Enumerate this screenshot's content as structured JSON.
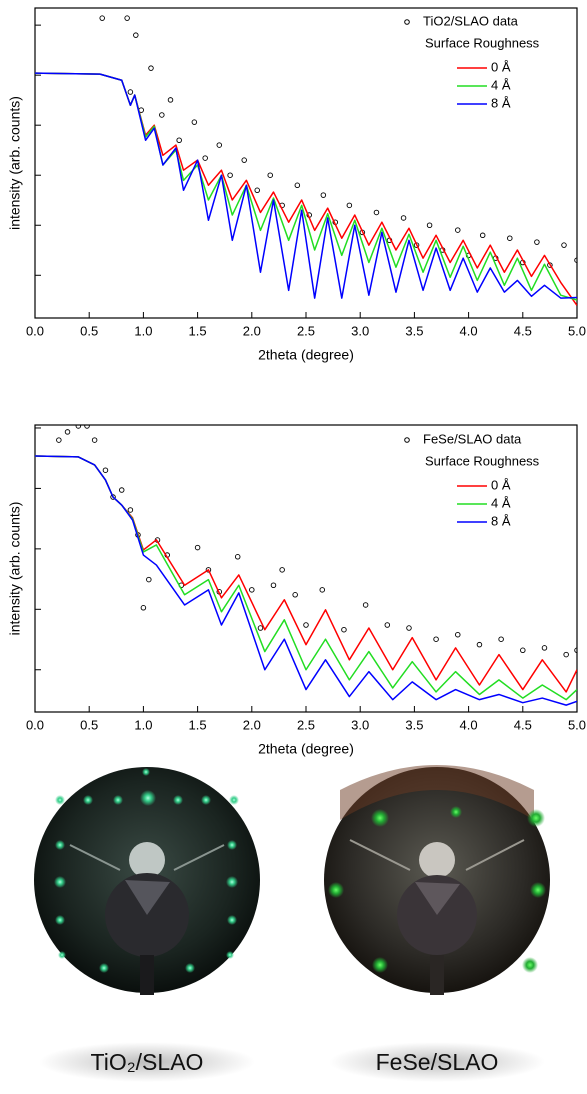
{
  "chart_data": [
    {
      "type": "line",
      "x_label": "2theta (degree)",
      "y_label": "intensity (arb. counts)",
      "log_scale": true,
      "legend_title": "Surface Roughness",
      "legend_position": "upper right",
      "xlim": [
        0,
        5
      ],
      "xticks": [
        {
          "value": 0,
          "label": "0.0"
        },
        {
          "value": 0.5,
          "label": "0.5"
        },
        {
          "value": 1,
          "label": "1.0"
        },
        {
          "value": 1.5,
          "label": "1.5"
        },
        {
          "value": 2,
          "label": "2.0"
        },
        {
          "value": 2.5,
          "label": "2.5"
        },
        {
          "value": 3,
          "label": "3.0"
        },
        {
          "value": 3.5,
          "label": "3.5"
        },
        {
          "value": 4,
          "label": "4.0"
        },
        {
          "value": 4.5,
          "label": "4.5"
        },
        {
          "value": 5,
          "label": "5.0"
        }
      ],
      "ylim": [
        1.4e-06,
        2.2
      ],
      "yticks": [
        1,
        0.1,
        0.01,
        0.001,
        0.0001,
        1e-05
      ],
      "series": [
        {
          "name": "TiO2/SLAO data",
          "mode": "markers",
          "color": "#000000",
          "x": [
            0.62,
            0.85,
            0.88,
            0.93,
            0.98,
            1.07,
            1.17,
            1.25,
            1.33,
            1.47,
            1.57,
            1.7,
            1.8,
            1.93,
            2.05,
            2.17,
            2.28,
            2.42,
            2.53,
            2.66,
            2.77,
            2.9,
            3.02,
            3.15,
            3.27,
            3.4,
            3.52,
            3.64,
            3.76,
            3.9,
            4.0,
            4.13,
            4.25,
            4.38,
            4.5,
            4.63,
            4.75,
            4.88,
            5.0
          ],
          "values": [
            1.38,
            1.38,
            0.046,
            0.63,
            0.02,
            0.138,
            0.016,
            0.032,
            0.005,
            0.0115,
            0.0022,
            0.004,
            0.001,
            0.002,
            0.0005,
            0.001,
            0.00025,
            0.00063,
            0.00016,
            0.0004,
            0.000115,
            0.00025,
            7.2e-05,
            0.00018,
            5e-05,
            0.00014,
            4e-05,
            0.0001,
            3.2e-05,
            8e-05,
            2.5e-05,
            6.3e-05,
            2.2e-05,
            5.5e-05,
            1.8e-05,
            4.6e-05,
            1.6e-05,
            4e-05,
            2e-05
          ]
        },
        {
          "name": "0 Å",
          "mode": "line",
          "color": "#ff0000",
          "x": [
            0,
            0.6,
            0.8,
            0.88,
            0.92,
            1.02,
            1.1,
            1.18,
            1.3,
            1.37,
            1.5,
            1.6,
            1.72,
            1.82,
            1.95,
            2.08,
            2.2,
            2.34,
            2.46,
            2.58,
            2.7,
            2.83,
            2.95,
            3.08,
            3.2,
            3.33,
            3.45,
            3.58,
            3.7,
            3.83,
            3.95,
            4.08,
            4.2,
            4.33,
            4.45,
            4.58,
            4.7,
            4.85,
            5.0
          ],
          "values": [
            0.11,
            0.105,
            0.079,
            0.025,
            0.04,
            0.0063,
            0.01,
            0.0025,
            0.004,
            0.00126,
            0.002,
            0.00063,
            0.00126,
            0.00032,
            0.00079,
            0.00018,
            0.00046,
            0.000115,
            0.00032,
            7.9e-05,
            0.00022,
            5.5e-05,
            0.00016,
            4e-05,
            0.000115,
            3.2e-05,
            8.7e-05,
            2.2e-05,
            6.3e-05,
            1.8e-05,
            5e-05,
            1.4e-05,
            4e-05,
            1.15e-05,
            3.2e-05,
            9.5e-06,
            2.5e-05,
            7.2e-06,
            2.5e-06
          ]
        },
        {
          "name": "4 Å",
          "mode": "line",
          "color": "#22dd22",
          "x": [
            0,
            0.6,
            0.8,
            0.88,
            0.92,
            1.02,
            1.1,
            1.18,
            1.3,
            1.37,
            1.5,
            1.6,
            1.72,
            1.82,
            1.95,
            2.08,
            2.2,
            2.34,
            2.46,
            2.58,
            2.7,
            2.83,
            2.95,
            3.08,
            3.2,
            3.33,
            3.45,
            3.58,
            3.7,
            3.83,
            3.95,
            4.08,
            4.2,
            4.33,
            4.45,
            4.58,
            4.7,
            4.85,
            5.0
          ],
          "values": [
            0.11,
            0.105,
            0.079,
            0.025,
            0.04,
            0.0058,
            0.0095,
            0.0016,
            0.0032,
            0.00079,
            0.0016,
            0.00032,
            0.001,
            0.00016,
            0.00063,
            7.9e-05,
            0.00035,
            5e-05,
            0.00025,
            3.2e-05,
            0.00017,
            2.5e-05,
            0.000126,
            1.8e-05,
            8.7e-05,
            1.45e-05,
            6.6e-05,
            1.15e-05,
            5e-05,
            9.1e-06,
            3.8e-05,
            7.9e-06,
            2.9e-05,
            6.3e-06,
            2.2e-05,
            5e-06,
            1.66e-05,
            4e-06,
            3.2e-06
          ]
        },
        {
          "name": "8 Å",
          "mode": "line",
          "color": "#0000ff",
          "x": [
            0,
            0.6,
            0.8,
            0.88,
            0.92,
            1.02,
            1.1,
            1.18,
            1.3,
            1.37,
            1.5,
            1.6,
            1.72,
            1.82,
            1.95,
            2.08,
            2.2,
            2.34,
            2.46,
            2.58,
            2.7,
            2.83,
            2.95,
            3.08,
            3.2,
            3.33,
            3.45,
            3.58,
            3.7,
            3.83,
            3.95,
            4.08,
            4.2,
            4.33,
            4.45,
            4.58,
            4.7,
            4.85,
            5.0
          ],
          "values": [
            0.11,
            0.105,
            0.079,
            0.025,
            0.04,
            0.005,
            0.0087,
            0.0016,
            0.0035,
            0.0005,
            0.002,
            0.000126,
            0.001,
            5e-05,
            0.00063,
            1.15e-05,
            0.00032,
            5e-06,
            0.0002,
            3.5e-06,
            0.00014,
            3.5e-06,
            0.0001,
            4e-06,
            7.2e-05,
            4.6e-06,
            5e-05,
            5e-06,
            3.5e-05,
            5e-06,
            2.2e-05,
            4.6e-06,
            1.4e-05,
            4.6e-06,
            7.9e-06,
            3.8e-06,
            6.3e-06,
            3.5e-06,
            3.6e-06
          ]
        }
      ]
    },
    {
      "type": "line",
      "x_label": "2theta (degree)",
      "y_label": "intensity (arb. counts)",
      "log_scale": true,
      "legend_title": "Surface Roughness",
      "legend_position": "upper right",
      "xlim": [
        0,
        5
      ],
      "xticks": [
        {
          "value": 0,
          "label": "0.0"
        },
        {
          "value": 0.5,
          "label": "0.5"
        },
        {
          "value": 1,
          "label": "1.0"
        },
        {
          "value": 1.5,
          "label": "1.5"
        },
        {
          "value": 2,
          "label": "2.0"
        },
        {
          "value": 2.5,
          "label": "2.5"
        },
        {
          "value": 3,
          "label": "3.0"
        },
        {
          "value": 3.5,
          "label": "3.5"
        },
        {
          "value": 4,
          "label": "4.0"
        },
        {
          "value": 4.5,
          "label": "4.5"
        },
        {
          "value": 5,
          "label": "5.0"
        }
      ],
      "ylim": [
        2e-05,
        1.12
      ],
      "yticks": [
        1,
        0.1,
        0.01,
        0.001,
        0.0001
      ],
      "series": [
        {
          "name": "FeSe/SLAO data",
          "mode": "markers",
          "color": "#000000",
          "x": [
            0.22,
            0.3,
            0.4,
            0.48,
            0.55,
            0.65,
            0.72,
            0.8,
            0.88,
            0.95,
            1.0,
            1.05,
            1.13,
            1.22,
            1.35,
            1.5,
            1.6,
            1.7,
            1.87,
            2.0,
            2.08,
            2.2,
            2.28,
            2.4,
            2.5,
            2.65,
            2.85,
            3.05,
            3.25,
            3.45,
            3.7,
            3.9,
            4.1,
            4.3,
            4.5,
            4.7,
            4.9,
            5.0
          ],
          "values": [
            0.63,
            0.86,
            1.08,
            1.08,
            0.63,
            0.2,
            0.072,
            0.094,
            0.044,
            0.017,
            0.00106,
            0.0031,
            0.014,
            0.0079,
            0.0025,
            0.0105,
            0.0045,
            0.00195,
            0.0074,
            0.0021,
            0.00049,
            0.0025,
            0.0045,
            0.00174,
            0.00055,
            0.0021,
            0.00046,
            0.00118,
            0.00055,
            0.00049,
            0.00032,
            0.00038,
            0.00026,
            0.00032,
            0.00021,
            0.00023,
            0.000178,
            0.00021
          ]
        },
        {
          "name": "0 Å",
          "mode": "line",
          "color": "#ff0000",
          "x": [
            0,
            0.4,
            0.55,
            0.65,
            0.72,
            0.8,
            0.9,
            1.0,
            1.12,
            1.38,
            1.6,
            1.72,
            1.88,
            2.12,
            2.3,
            2.5,
            2.68,
            2.9,
            3.08,
            3.3,
            3.48,
            3.7,
            3.88,
            4.1,
            4.28,
            4.5,
            4.68,
            4.9,
            5.0
          ],
          "values": [
            0.344,
            0.332,
            0.245,
            0.138,
            0.072,
            0.053,
            0.0325,
            0.0096,
            0.0141,
            0.0025,
            0.0045,
            0.00155,
            0.0037,
            0.00046,
            0.00144,
            0.00026,
            0.00098,
            0.000146,
            0.00049,
            0.0001,
            0.00034,
            6.8e-05,
            0.00023,
            5.6e-05,
            0.000178,
            4.7e-05,
            0.000146,
            4.3e-05,
            0.0001
          ]
        },
        {
          "name": "4 Å",
          "mode": "line",
          "color": "#22dd22",
          "x": [
            0,
            0.4,
            0.55,
            0.65,
            0.72,
            0.8,
            0.9,
            1.0,
            1.12,
            1.38,
            1.6,
            1.72,
            1.88,
            2.12,
            2.3,
            2.5,
            2.68,
            2.9,
            3.08,
            3.3,
            3.48,
            3.7,
            3.88,
            4.1,
            4.28,
            4.5,
            4.68,
            4.9,
            5.0
          ],
          "values": [
            0.344,
            0.332,
            0.245,
            0.138,
            0.072,
            0.053,
            0.0313,
            0.0089,
            0.0116,
            0.00174,
            0.0031,
            0.00091,
            0.0025,
            0.0002,
            0.00067,
            0.0001,
            0.00032,
            6.8e-05,
            0.0002,
            5e-05,
            0.000136,
            4.3e-05,
            9.3e-05,
            3.9e-05,
            6.8e-05,
            3.4e-05,
            5.6e-05,
            3.2e-05,
            4.7e-05
          ]
        },
        {
          "name": "8 Å",
          "mode": "line",
          "color": "#0000ff",
          "x": [
            0,
            0.4,
            0.55,
            0.65,
            0.72,
            0.8,
            0.9,
            1.0,
            1.12,
            1.38,
            1.6,
            1.72,
            1.88,
            2.12,
            2.3,
            2.5,
            2.68,
            2.9,
            3.08,
            3.3,
            3.48,
            3.7,
            3.88,
            4.1,
            4.28,
            4.5,
            4.68,
            4.9,
            5.0
          ],
          "values": [
            0.344,
            0.332,
            0.245,
            0.138,
            0.072,
            0.053,
            0.03,
            0.0079,
            0.0054,
            0.00118,
            0.0021,
            0.00055,
            0.00187,
            0.0001,
            0.00032,
            4.7e-05,
            0.000146,
            3.6e-05,
            9.3e-05,
            3.2e-05,
            6.3e-05,
            3.2e-05,
            4.7e-05,
            3.2e-05,
            3.9e-05,
            2.85e-05,
            3.4e-05,
            2.6e-05,
            3e-05
          ]
        }
      ]
    }
  ],
  "images": [
    {
      "caption": "TiO₂/SLAO"
    },
    {
      "caption": "FeSe/SLAO"
    }
  ]
}
